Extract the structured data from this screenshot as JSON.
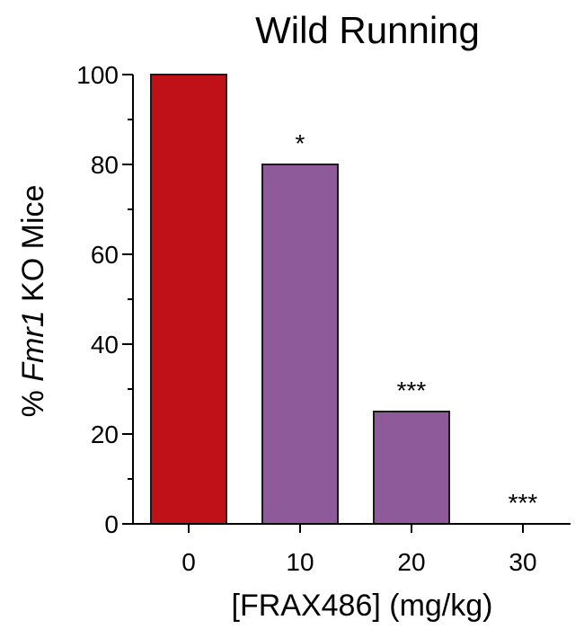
{
  "chart_data": {
    "type": "bar",
    "title": "Wild Running",
    "xlabel": "[FRAX486] (mg/kg)",
    "ylabel": {
      "prefix": "% ",
      "italic": "Fmr1",
      "suffix": " KO Mice"
    },
    "categories": [
      "0",
      "10",
      "20",
      "30"
    ],
    "values": [
      100,
      80,
      25,
      0
    ],
    "annotations": [
      "",
      "*",
      "***",
      "***"
    ],
    "bar_colors": [
      "#c01018",
      "#8e5a9a",
      "#8e5a9a",
      "#8e5a9a"
    ],
    "ylim": [
      0,
      100
    ],
    "yticks": [
      0,
      20,
      40,
      60,
      80,
      100
    ],
    "yticks_minor": [
      10,
      30,
      50,
      70,
      90
    ],
    "grid": false,
    "legend": "none"
  }
}
